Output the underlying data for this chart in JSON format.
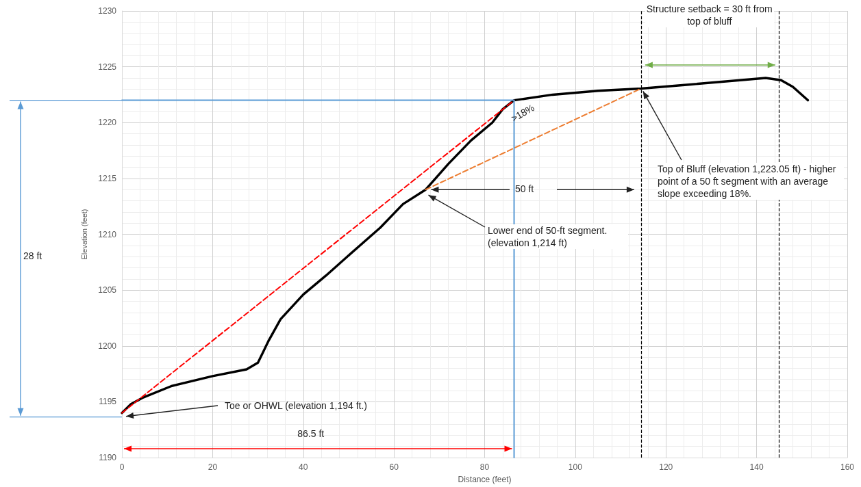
{
  "chart_data": {
    "type": "line",
    "xlabel": "Distance (feet)",
    "ylabel": "Elevation (feet)",
    "xlim": [
      0,
      160
    ],
    "xticks": [
      0,
      20,
      40,
      60,
      80,
      100,
      120,
      140,
      160
    ],
    "ylim": [
      1190,
      1230
    ],
    "yticks": [
      1190,
      1195,
      1200,
      1205,
      1210,
      1215,
      1220,
      1225,
      1230
    ],
    "grid": true,
    "marker": "none",
    "line_style": "solid",
    "series": [
      {
        "color": "#000000",
        "x": [
          0,
          2,
          4.8,
          10.9,
          20,
          27.5,
          30,
          31.2,
          32.4,
          35,
          40,
          45,
          50,
          57,
          62,
          67,
          72,
          77,
          81.7,
          84,
          86.5,
          95,
          105,
          114.5,
          125,
          135,
          142,
          145.4,
          148,
          151.3
        ],
        "values": [
          1194,
          1194.8,
          1195.4,
          1196.4,
          1197.3,
          1197.9,
          1198.5,
          1199.5,
          1200.5,
          1202.4,
          1204.6,
          1206.3,
          1208.1,
          1210.6,
          1212.7,
          1214,
          1216.3,
          1218.4,
          1220,
          1221.2,
          1222,
          1222.5,
          1222.85,
          1223.05,
          1223.4,
          1223.75,
          1224,
          1223.8,
          1223.2,
          1222
        ]
      },
      {
        "color": "#ff0000",
        "line_style": "dashed",
        "x": [
          0,
          86.5
        ],
        "values": [
          1194,
          1222
        ]
      },
      {
        "color": "#ed7d31",
        "line_style": "dashed",
        "x": [
          67,
          114.5
        ],
        "values": [
          1214,
          1223.05
        ]
      },
      {
        "color": "#5b9bd5",
        "x": [
          0,
          86.5,
          86.5
        ],
        "values": [
          1222,
          1222,
          1190
        ]
      }
    ],
    "ref_lines": [
      {
        "axis": "x",
        "value": 114.5,
        "color": "#000000",
        "line_style": "dashed"
      },
      {
        "axis": "x",
        "value": 145,
        "color": "#000000",
        "line_style": "dashed"
      }
    ],
    "annotations": [
      "Structure setback = 30 ft from top of bluff",
      {
        "text": "Top of Bluff (elevation 1,223.05 ft) - higher point of a 50 ft segment with an average slope exceeding 18%.",
        "x": 114.5,
        "y": 1223.05
      },
      {
        "text": "Lower end of 50-ft segment. (elevation 1,214 ft)",
        "x": 67,
        "y": 1214
      },
      {
        "text": "Toe or OHWL (elevation 1,194 ft.)",
        "x": 0,
        "y": 1194
      },
      ">18%",
      {
        "text": "50 ft",
        "x": 67,
        "y": 1214
      },
      "86.5 ft",
      "28 ft"
    ]
  }
}
